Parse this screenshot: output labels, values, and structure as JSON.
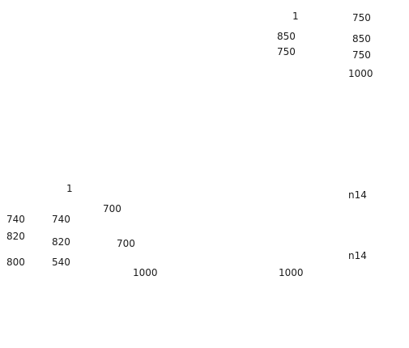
{
  "labels": {
    "top_right_a_1": "1",
    "top_right_a_2": "850",
    "top_right_a_3": "750",
    "top_right_b_1": "750",
    "top_right_b_2": "850",
    "top_right_b_3": "750",
    "top_right_b_4": "1000",
    "left_a_1": "740",
    "left_a_2": "820",
    "left_a_3": "800",
    "left_b_1": "1",
    "left_b_2": "740",
    "left_b_3": "820",
    "left_b_4": "540",
    "left_c_1": "700",
    "left_c_2": "700",
    "left_c_3": "1000",
    "bottom_mid_1": "1000",
    "right_1": "n14",
    "right_2": "n14"
  }
}
